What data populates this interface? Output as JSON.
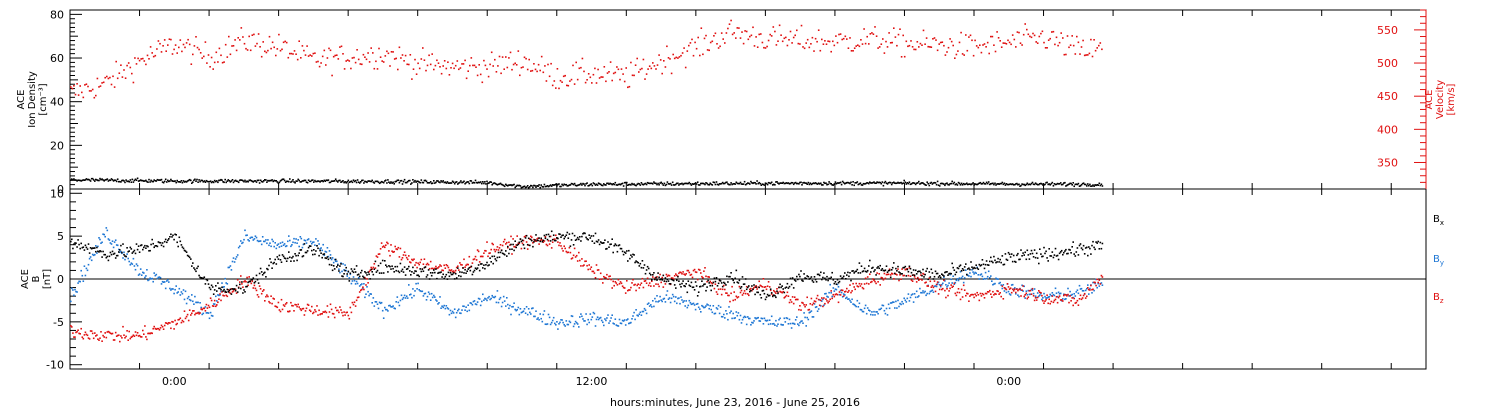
{
  "chart_data": [
    {
      "type": "scatter",
      "panel": "top",
      "ylabel_left": [
        "ACE",
        "Ion Density",
        "[cm⁻³]"
      ],
      "ylabel_right": [
        "ACE",
        "Velocity",
        "[km/s]"
      ],
      "left_axis": {
        "range": [
          0,
          82
        ],
        "ticks": [
          "0",
          "20",
          "40",
          "60",
          "80"
        ],
        "color": "#000000"
      },
      "right_axis": {
        "range": [
          310,
          580
        ],
        "ticks": [
          "350",
          "400",
          "450",
          "500",
          "550"
        ],
        "color": "#e01010"
      },
      "x_range_hours": [
        -3,
        36
      ],
      "data_extent_hours": [
        -3,
        26.7
      ],
      "series": [
        {
          "name": "Ion Density",
          "axis": "left",
          "color": "#000000",
          "x_hours": [
            -3,
            0,
            3,
            6,
            9,
            10,
            12,
            15,
            18,
            21,
            24,
            26.7
          ],
          "values": [
            4.5,
            4,
            4,
            3.8,
            3.3,
            1.5,
            2.5,
            2.8,
            3,
            3,
            2.6,
            2.5
          ]
        },
        {
          "name": "Velocity",
          "axis": "right",
          "color": "#e01010",
          "x_hours": [
            -3,
            -2,
            -1,
            0,
            1,
            2,
            3,
            4,
            5,
            6,
            7,
            8,
            9,
            10,
            11,
            12,
            13,
            14,
            15,
            16,
            17,
            18,
            19,
            20,
            21,
            22,
            23,
            24,
            25,
            26,
            26.7
          ],
          "values": [
            455,
            470,
            505,
            530,
            510,
            535,
            525,
            505,
            510,
            515,
            500,
            495,
            495,
            505,
            480,
            485,
            480,
            505,
            525,
            548,
            538,
            535,
            533,
            537,
            530,
            528,
            525,
            532,
            540,
            520,
            522
          ]
        }
      ]
    },
    {
      "type": "scatter",
      "panel": "bottom",
      "ylabel": [
        "ACE",
        "B",
        "[nT]"
      ],
      "y_axis": {
        "range": [
          -10.5,
          10.5
        ],
        "ticks": [
          "-10",
          "-5",
          "0",
          "5",
          "10"
        ]
      },
      "x_axis": {
        "ticks": [
          "0:00",
          "12:00",
          "0:00"
        ],
        "tick_hours": [
          0,
          12,
          24
        ]
      },
      "x_range_hours": [
        -3,
        36
      ],
      "xlabel": "hours:minutes, June 23, 2016 - June 25, 2016",
      "legend": [
        "Bx",
        "By",
        "Bz"
      ],
      "series": [
        {
          "name": "Bx",
          "color": "#000000",
          "x_hours": [
            -3,
            -2,
            -1,
            0,
            1,
            2,
            3,
            4,
            5,
            6,
            7,
            8,
            9,
            10,
            11,
            12,
            13,
            14,
            15,
            16,
            17,
            18,
            19,
            20,
            21,
            22,
            23,
            24,
            25,
            26,
            26.7
          ],
          "values": [
            4.5,
            3,
            3.5,
            5,
            -1,
            -1,
            2.5,
            3.5,
            0.5,
            1.5,
            1,
            0.5,
            2,
            4.5,
            5,
            5,
            3,
            0,
            -1,
            0.5,
            -2,
            0.5,
            0,
            1.5,
            1,
            0.5,
            1.5,
            2.5,
            3,
            3.5,
            4
          ]
        },
        {
          "name": "By",
          "color": "#1f77d4",
          "x_hours": [
            -3,
            -2,
            -1,
            0,
            1,
            2,
            3,
            4,
            5,
            6,
            7,
            8,
            9,
            10,
            11,
            12,
            13,
            14,
            15,
            16,
            17,
            18,
            19,
            20,
            21,
            22,
            23,
            24,
            25,
            26,
            26.7
          ],
          "values": [
            -2,
            5.5,
            1,
            -1,
            -4,
            5,
            4,
            4.5,
            0.5,
            -3.5,
            -1,
            -4,
            -2,
            -3.5,
            -5,
            -4.5,
            -5,
            -2,
            -3,
            -4,
            -5,
            -5,
            -1,
            -4,
            -2.5,
            -0.5,
            1,
            -1,
            -2,
            -1.5,
            -0.5
          ]
        },
        {
          "name": "Bz",
          "color": "#e01010",
          "x_hours": [
            -3,
            -2,
            -1,
            0,
            1,
            2,
            3,
            4,
            5,
            6,
            7,
            8,
            9,
            10,
            11,
            12,
            13,
            14,
            15,
            16,
            17,
            18,
            19,
            20,
            21,
            22,
            23,
            24,
            25,
            26,
            26.7
          ],
          "values": [
            -6,
            -6.5,
            -6.5,
            -5,
            -3,
            0,
            -3,
            -3.5,
            -4,
            4,
            2,
            1,
            3.5,
            4.5,
            4.5,
            1,
            -1,
            0,
            1,
            -2,
            -0.5,
            -3,
            -2,
            0,
            1,
            -1,
            -2,
            -1,
            -2,
            -2.5,
            0.5
          ]
        }
      ]
    }
  ]
}
